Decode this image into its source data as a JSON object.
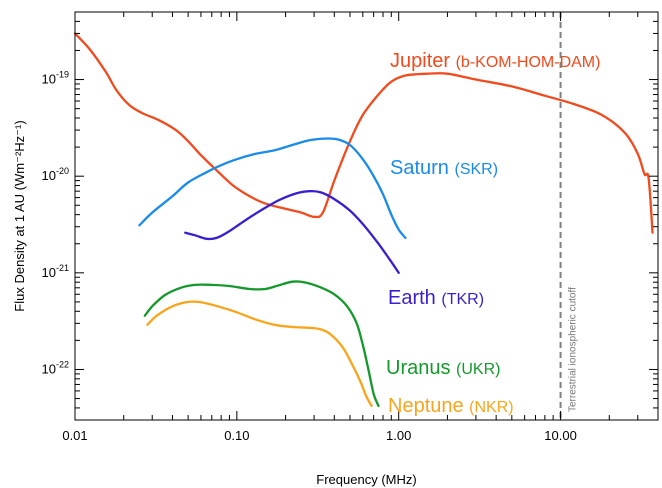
{
  "chart_data": {
    "type": "line",
    "xlabel": "Frequency (MHz)",
    "ylabel": "Flux Density at 1 AU (Wm⁻²Hz⁻¹)",
    "xscale": "log",
    "yscale": "log",
    "xlim": [
      0.01,
      40
    ],
    "ylim": [
      3e-23,
      5e-19
    ],
    "x_ticks": [
      {
        "value": 0.01,
        "label": "0.01"
      },
      {
        "value": 0.1,
        "label": "0.10"
      },
      {
        "value": 1,
        "label": "1.00"
      },
      {
        "value": 10,
        "label": "10.00"
      }
    ],
    "y_ticks": [
      {
        "value": 1e-19,
        "base": "10",
        "exp": "-19"
      },
      {
        "value": 1e-20,
        "base": "10",
        "exp": "-20"
      },
      {
        "value": 1e-21,
        "base": "10",
        "exp": "-21"
      },
      {
        "value": 1e-22,
        "base": "10",
        "exp": "-22"
      }
    ],
    "grid": false,
    "cutoff": {
      "x": 10,
      "label": "Terrestrial ionospheric cutoff",
      "color": "#808080"
    },
    "series": [
      {
        "name": "Jupiter",
        "tag": "(b-KOM-HOM-DAM)",
        "color": "#f04a1e",
        "points": [
          [
            0.01,
            3e-19
          ],
          [
            0.0125,
            2e-19
          ],
          [
            0.0155,
            1.2e-19
          ],
          [
            0.018,
            7.8e-20
          ],
          [
            0.0215,
            5.5e-20
          ],
          [
            0.026,
            4.5e-20
          ],
          [
            0.033,
            3.8e-20
          ],
          [
            0.042,
            3e-20
          ],
          [
            0.05,
            2.3e-20
          ],
          [
            0.06,
            1.65e-20
          ],
          [
            0.075,
            1.15e-20
          ],
          [
            0.095,
            8e-21
          ],
          [
            0.12,
            6.2e-21
          ],
          [
            0.15,
            5.2e-21
          ],
          [
            0.2,
            4.6e-21
          ],
          [
            0.25,
            4.2e-21
          ],
          [
            0.3,
            3.8e-21
          ],
          [
            0.34,
            4.2e-21
          ],
          [
            0.4,
            9e-21
          ],
          [
            0.5,
            2.3e-20
          ],
          [
            0.6,
            4.3e-20
          ],
          [
            0.75,
            7e-20
          ],
          [
            0.9,
            9.5e-20
          ],
          [
            1.1,
            1.1e-19
          ],
          [
            1.5,
            1.15e-19
          ],
          [
            2.0,
            1.15e-19
          ],
          [
            3.0,
            1e-19
          ],
          [
            5.0,
            8.5e-20
          ],
          [
            8.0,
            6.8e-20
          ],
          [
            12.0,
            5.6e-20
          ],
          [
            18.0,
            4.3e-20
          ],
          [
            25.0,
            2.8e-20
          ],
          [
            30.0,
            1.7e-20
          ],
          [
            33.0,
            1.05e-20
          ],
          [
            35.0,
            9.5e-21
          ],
          [
            37.0,
            2.6e-21
          ]
        ]
      },
      {
        "name": "Saturn",
        "tag": "(SKR)",
        "color": "#1a8be8",
        "points": [
          [
            0.025,
            3.1e-21
          ],
          [
            0.03,
            4.2e-21
          ],
          [
            0.04,
            6.2e-21
          ],
          [
            0.05,
            8.6e-21
          ],
          [
            0.065,
            1.1e-20
          ],
          [
            0.08,
            1.3e-20
          ],
          [
            0.1,
            1.5e-20
          ],
          [
            0.13,
            1.7e-20
          ],
          [
            0.17,
            1.85e-20
          ],
          [
            0.22,
            2.1e-20
          ],
          [
            0.28,
            2.35e-20
          ],
          [
            0.35,
            2.45e-20
          ],
          [
            0.42,
            2.4e-20
          ],
          [
            0.5,
            2.1e-20
          ],
          [
            0.6,
            1.5e-20
          ],
          [
            0.7,
            1e-20
          ],
          [
            0.8,
            6.5e-21
          ],
          [
            0.9,
            4e-21
          ],
          [
            1.0,
            2.8e-21
          ],
          [
            1.1,
            2.3e-21
          ]
        ]
      },
      {
        "name": "Earth",
        "tag": "(TKR)",
        "color": "#3a1fd0",
        "points": [
          [
            0.048,
            2.6e-21
          ],
          [
            0.055,
            2.45e-21
          ],
          [
            0.065,
            2.25e-21
          ],
          [
            0.075,
            2.3e-21
          ],
          [
            0.09,
            2.7e-21
          ],
          [
            0.11,
            3.4e-21
          ],
          [
            0.14,
            4.4e-21
          ],
          [
            0.18,
            5.6e-21
          ],
          [
            0.23,
            6.6e-21
          ],
          [
            0.28,
            7e-21
          ],
          [
            0.33,
            6.8e-21
          ],
          [
            0.4,
            5.8e-21
          ],
          [
            0.5,
            4.4e-21
          ],
          [
            0.6,
            3.2e-21
          ],
          [
            0.75,
            2e-21
          ],
          [
            0.9,
            1.3e-21
          ],
          [
            1.0,
            1e-21
          ]
        ]
      },
      {
        "name": "Uranus",
        "tag": "(UKR)",
        "color": "#15982c",
        "points": [
          [
            0.027,
            3.6e-22
          ],
          [
            0.03,
            4.5e-22
          ],
          [
            0.036,
            5.9e-22
          ],
          [
            0.045,
            7e-22
          ],
          [
            0.055,
            7.5e-22
          ],
          [
            0.07,
            7.5e-22
          ],
          [
            0.09,
            7.3e-22
          ],
          [
            0.12,
            6.8e-22
          ],
          [
            0.15,
            6.8e-22
          ],
          [
            0.18,
            7.4e-22
          ],
          [
            0.22,
            8.1e-22
          ],
          [
            0.26,
            8e-22
          ],
          [
            0.32,
            7.2e-22
          ],
          [
            0.4,
            6e-22
          ],
          [
            0.48,
            4.5e-22
          ],
          [
            0.55,
            3e-22
          ],
          [
            0.6,
            1.8e-22
          ],
          [
            0.65,
            1e-22
          ],
          [
            0.7,
            5.6e-23
          ],
          [
            0.75,
            4.2e-23
          ]
        ]
      },
      {
        "name": "Neptune",
        "tag": "(NKR)",
        "color": "#f8a51c",
        "points": [
          [
            0.028,
            2.9e-22
          ],
          [
            0.032,
            3.6e-22
          ],
          [
            0.04,
            4.5e-22
          ],
          [
            0.05,
            5e-22
          ],
          [
            0.06,
            4.95e-22
          ],
          [
            0.08,
            4.4e-22
          ],
          [
            0.1,
            3.9e-22
          ],
          [
            0.13,
            3.3e-22
          ],
          [
            0.17,
            2.9e-22
          ],
          [
            0.22,
            2.75e-22
          ],
          [
            0.28,
            2.7e-22
          ],
          [
            0.33,
            2.6e-22
          ],
          [
            0.38,
            2.3e-22
          ],
          [
            0.45,
            1.7e-22
          ],
          [
            0.52,
            1.1e-22
          ],
          [
            0.58,
            7.5e-23
          ],
          [
            0.63,
            5.3e-23
          ],
          [
            0.68,
            4.2e-23
          ]
        ]
      }
    ]
  }
}
